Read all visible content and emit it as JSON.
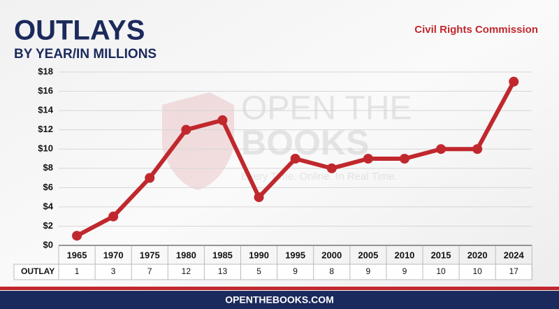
{
  "chart_data": {
    "type": "line",
    "title": "OUTLAYS",
    "subtitle": "BY YEAR/IN MILLIONS",
    "source": "Civil Rights Commission",
    "watermark": [
      "OPEN THE",
      "BOOKS",
      "Every Time. Online. In Real Time."
    ],
    "footer": "OPENTHEBOOKS.COM",
    "categories": [
      "1965",
      "1970",
      "1975",
      "1980",
      "1985",
      "1990",
      "1995",
      "2000",
      "2005",
      "2010",
      "2015",
      "2020",
      "2024"
    ],
    "series": [
      {
        "name": "OUTLAY",
        "color": "#c0282d",
        "values": [
          1,
          3,
          7,
          12,
          13,
          5,
          9,
          8,
          9,
          9,
          10,
          10,
          17
        ]
      }
    ],
    "ylim": [
      0,
      18
    ],
    "yticks": [
      {
        "value": 0,
        "label": "$0"
      },
      {
        "value": 2,
        "label": "$2"
      },
      {
        "value": 4,
        "label": "$4"
      },
      {
        "value": 6,
        "label": "$6"
      },
      {
        "value": 8,
        "label": "$8"
      },
      {
        "value": 10,
        "label": "$10"
      },
      {
        "value": 12,
        "label": "$12"
      },
      {
        "value": 14,
        "label": "$14"
      },
      {
        "value": 16,
        "label": "$16"
      },
      {
        "value": 18,
        "label": "$18"
      }
    ],
    "grid": true
  }
}
